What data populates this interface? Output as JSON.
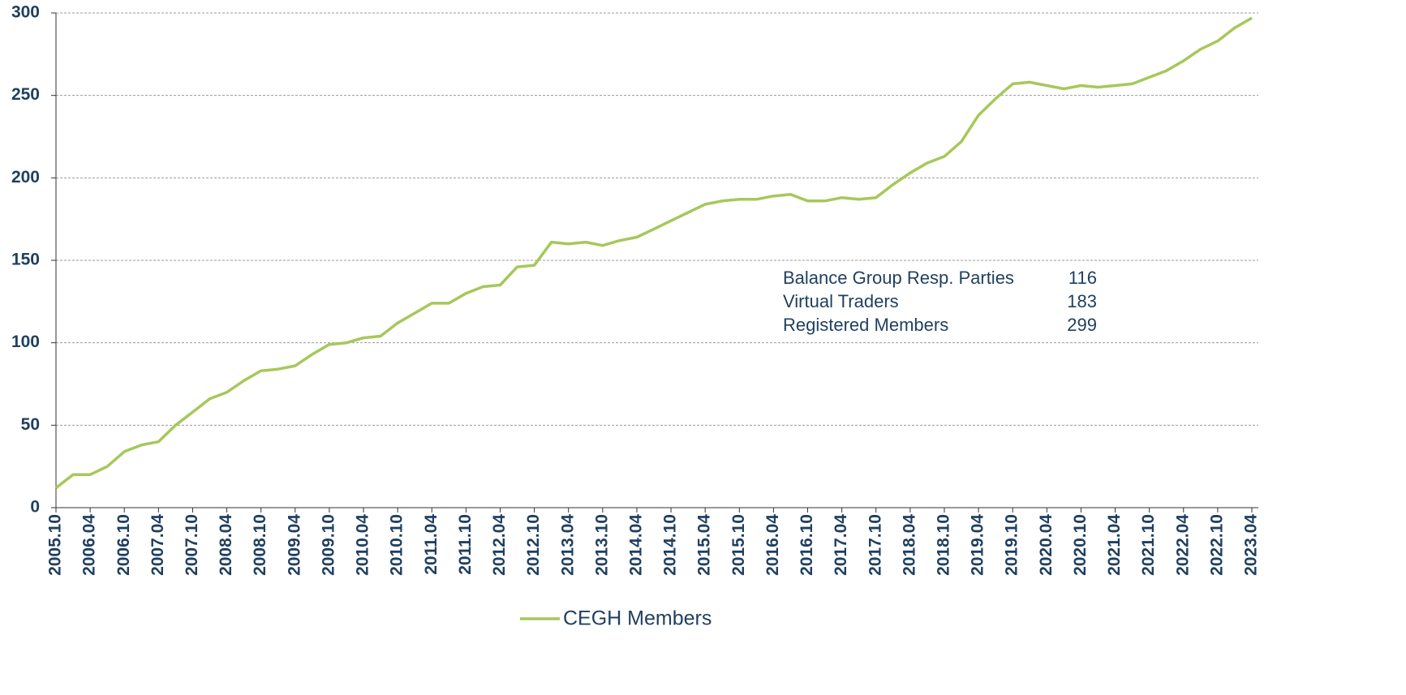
{
  "chart_data": {
    "type": "line",
    "categories": [
      "2005.10",
      null,
      "2006.04",
      null,
      "2006.10",
      null,
      "2007.04",
      null,
      "2007.10",
      null,
      "2008.04",
      null,
      "2008.10",
      null,
      "2009.04",
      null,
      "2009.10",
      null,
      "2010.04",
      null,
      "2010.10",
      null,
      "2011.04",
      null,
      "2011.10",
      null,
      "2012.04",
      null,
      "2012.10",
      null,
      "2013.04",
      null,
      "2013.10",
      null,
      "2014.04",
      null,
      "2014.10",
      null,
      "2015.04",
      null,
      "2015.10",
      null,
      "2016.04",
      null,
      "2016.10",
      null,
      "2017.04",
      null,
      "2017.10",
      null,
      "2018.04",
      null,
      "2018.10",
      null,
      "2019.04",
      null,
      "2019.10",
      null,
      "2020.04",
      null,
      "2020.10",
      null,
      "2021.04",
      null,
      "2021.10",
      null,
      "2022.04",
      null,
      "2022.10",
      null,
      "2023.04"
    ],
    "series": [
      {
        "name": "CEGH Members",
        "color": "#a6c85a",
        "values": [
          12,
          20,
          20,
          25,
          34,
          38,
          40,
          50,
          58,
          66,
          70,
          77,
          83,
          84,
          86,
          93,
          99,
          100,
          103,
          104,
          112,
          118,
          124,
          124,
          130,
          134,
          135,
          146,
          147,
          161,
          160,
          161,
          159,
          162,
          164,
          169,
          174,
          179,
          184,
          186,
          187,
          187,
          189,
          190,
          186,
          186,
          188,
          187,
          188,
          196,
          203,
          209,
          213,
          222,
          238,
          248,
          257,
          258,
          256,
          254,
          256,
          255,
          256,
          257,
          261,
          265,
          271,
          278,
          283,
          291,
          297
        ]
      }
    ],
    "ylim": [
      0,
      300
    ],
    "yticks": [
      0,
      50,
      100,
      150,
      200,
      250,
      300
    ],
    "grid": true,
    "legend": "bottom",
    "annotations": [
      {
        "label": "Balance Group Resp. Parties",
        "value": 116
      },
      {
        "label": "Virtual Traders",
        "value": 183
      },
      {
        "label": "Registered Members",
        "value": 299
      }
    ]
  }
}
